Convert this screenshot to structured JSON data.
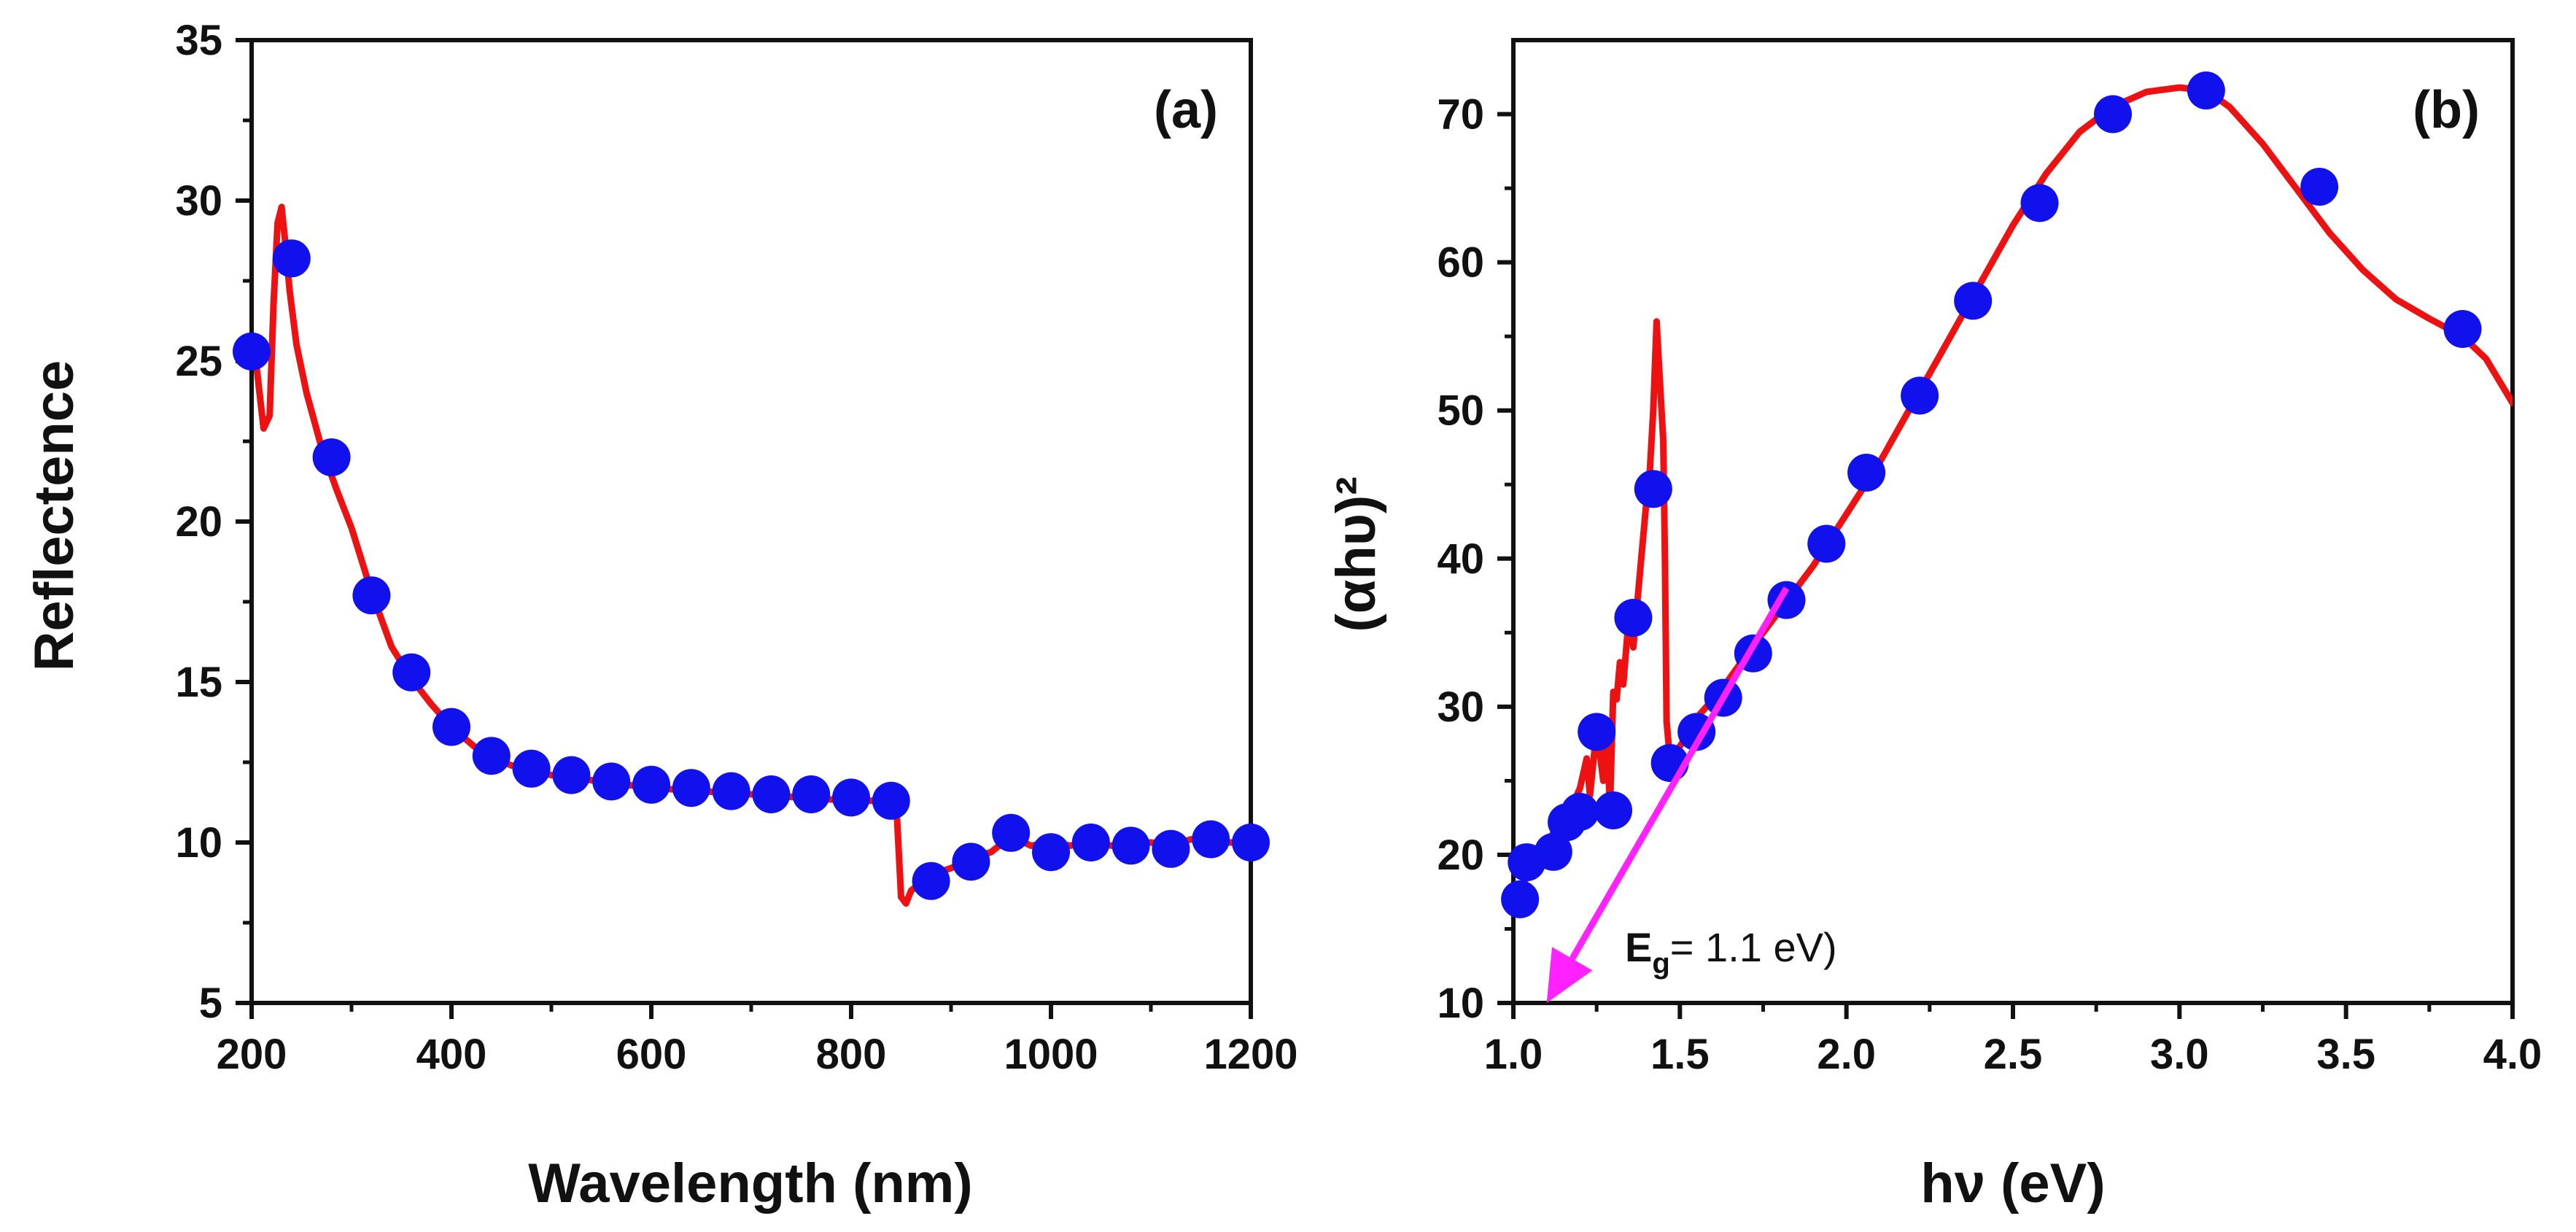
{
  "chart_data": [
    {
      "type": "line",
      "panel_label": "(a)",
      "title": "",
      "xlabel": "Wavelength (nm)",
      "ylabel": "Reflectence",
      "xlim": [
        200,
        1200
      ],
      "ylim": [
        5,
        35
      ],
      "xticks": [
        200,
        400,
        600,
        800,
        1000,
        1200
      ],
      "yticks": [
        5,
        10,
        15,
        20,
        25,
        30,
        35
      ],
      "grid": false,
      "legend": "none",
      "series": [
        {
          "name": "reflectance",
          "color": "#ee1111",
          "x": [
            200,
            205,
            212,
            218,
            222,
            226,
            230,
            234,
            238,
            245,
            255,
            270,
            285,
            300,
            320,
            340,
            360,
            380,
            400,
            430,
            460,
            500,
            550,
            600,
            650,
            700,
            750,
            800,
            845,
            848,
            850,
            855,
            860,
            880,
            900,
            920,
            940,
            960,
            980,
            1000,
            1020,
            1040,
            1060,
            1080,
            1100,
            1120,
            1140,
            1160,
            1180,
            1200
          ],
          "y": [
            25.3,
            24.8,
            22.9,
            23.3,
            26.8,
            29.3,
            29.8,
            28.6,
            27.2,
            25.5,
            24.0,
            22.3,
            21.0,
            19.8,
            17.8,
            16.1,
            15.1,
            14.3,
            13.6,
            12.8,
            12.4,
            12.1,
            11.9,
            11.7,
            11.6,
            11.5,
            11.4,
            11.3,
            11.3,
            9.5,
            8.3,
            8.1,
            8.5,
            9.0,
            9.2,
            9.5,
            9.7,
            10.2,
            9.9,
            10.0,
            9.9,
            10.1,
            9.9,
            10.0,
            10.0,
            9.9,
            10.1,
            10.0,
            10.0,
            10.0
          ]
        },
        {
          "name": "markers",
          "color": "#1111ee",
          "x": [
            200,
            240,
            280,
            320,
            360,
            400,
            440,
            480,
            520,
            560,
            600,
            640,
            680,
            720,
            760,
            800,
            840,
            880,
            920,
            960,
            1000,
            1040,
            1080,
            1120,
            1160,
            1200
          ],
          "y": [
            25.3,
            28.2,
            22.0,
            17.7,
            15.3,
            13.6,
            12.7,
            12.3,
            12.1,
            11.9,
            11.8,
            11.7,
            11.6,
            11.5,
            11.5,
            11.4,
            11.3,
            8.8,
            9.4,
            10.3,
            9.7,
            10.0,
            9.9,
            9.8,
            10.1,
            10.0
          ]
        }
      ]
    },
    {
      "type": "line",
      "panel_label": "(b)",
      "title": "",
      "xlabel": "hν (eV)",
      "ylabel": "(αhυ)²",
      "xlim": [
        1.0,
        4.0
      ],
      "ylim": [
        10,
        75
      ],
      "xticks": [
        "1.0",
        "1.5",
        "2.0",
        "2.5",
        "3.0",
        "3.5",
        "4.0"
      ],
      "yticks": [
        10,
        20,
        30,
        40,
        50,
        60,
        70
      ],
      "grid": false,
      "legend": "none",
      "annotation": {
        "text_main": "E",
        "text_sub": "g",
        "text_rest": "= 1.1 eV)",
        "arrow_from": [
          1.82,
          38
        ],
        "arrow_to": [
          1.1,
          10
        ],
        "arrow_color": "#ff22ff"
      },
      "series": [
        {
          "name": "tauc",
          "color": "#ee1111",
          "x": [
            1.02,
            1.05,
            1.08,
            1.1,
            1.12,
            1.15,
            1.18,
            1.2,
            1.22,
            1.23,
            1.25,
            1.27,
            1.28,
            1.29,
            1.3,
            1.31,
            1.32,
            1.33,
            1.35,
            1.36,
            1.38,
            1.4,
            1.41,
            1.42,
            1.43,
            1.44,
            1.45,
            1.455,
            1.46,
            1.47,
            1.49,
            1.52,
            1.56,
            1.62,
            1.7,
            1.8,
            1.9,
            2.0,
            2.1,
            2.2,
            2.3,
            2.4,
            2.5,
            2.6,
            2.7,
            2.8,
            2.9,
            3.0,
            3.08,
            3.15,
            3.25,
            3.35,
            3.45,
            3.55,
            3.65,
            3.75,
            3.85,
            3.92,
            4.0
          ],
          "y": [
            17.5,
            19.0,
            19.8,
            20.5,
            21.5,
            22.5,
            23.5,
            24.5,
            26.5,
            24.0,
            28.5,
            25.0,
            29.0,
            23.0,
            31.0,
            30.5,
            33.0,
            31.5,
            37.0,
            34.0,
            39.0,
            44.0,
            46.0,
            50.0,
            56.0,
            52.0,
            48.0,
            40.0,
            29.0,
            26.5,
            27.0,
            28.0,
            29.5,
            31.0,
            33.5,
            36.5,
            39.5,
            43.0,
            46.5,
            50.5,
            54.5,
            58.5,
            62.5,
            66.0,
            68.8,
            70.5,
            71.5,
            71.8,
            71.6,
            70.5,
            68.0,
            65.0,
            62.0,
            59.5,
            57.5,
            56.2,
            55.0,
            53.5,
            50.5
          ]
        },
        {
          "name": "markers",
          "color": "#1111ee",
          "x": [
            1.02,
            1.04,
            1.12,
            1.16,
            1.2,
            1.25,
            1.3,
            1.36,
            1.42,
            1.47,
            1.55,
            1.63,
            1.72,
            1.82,
            1.94,
            2.06,
            2.22,
            2.38,
            2.58,
            2.8,
            3.08,
            3.42,
            3.85
          ],
          "y": [
            17.0,
            19.5,
            20.2,
            22.2,
            22.9,
            28.3,
            23.0,
            36.0,
            44.7,
            26.2,
            28.3,
            30.6,
            33.6,
            37.2,
            41.0,
            45.8,
            51.0,
            57.4,
            64.0,
            70.0,
            71.6,
            65.1,
            55.5
          ]
        }
      ]
    }
  ]
}
